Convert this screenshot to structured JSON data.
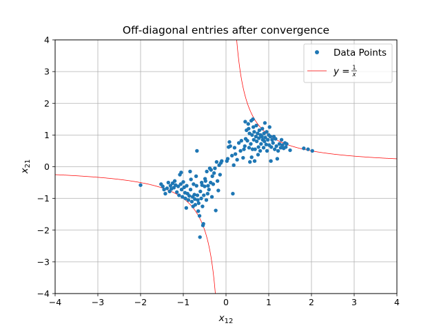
{
  "chart_data": {
    "type": "scatter",
    "title": "Off-diagonal entries after convergence",
    "xlabel": {
      "base": "x",
      "sub": "12"
    },
    "ylabel": {
      "base": "x",
      "sub": "21"
    },
    "xlim": [
      -4,
      4
    ],
    "ylim": [
      -4,
      4
    ],
    "xticks": [
      -4,
      -3,
      -2,
      -1,
      0,
      1,
      2,
      3,
      4
    ],
    "yticks": [
      -4,
      -3,
      -2,
      -1,
      0,
      1,
      2,
      3,
      4
    ],
    "xtick_labels": [
      "−4",
      "−3",
      "−2",
      "−1",
      "0",
      "1",
      "2",
      "3",
      "4"
    ],
    "ytick_labels": [
      "−4",
      "−3",
      "−2",
      "−1",
      "0",
      "1",
      "2",
      "3",
      "4"
    ],
    "grid": true,
    "legend_position": "top-right",
    "series": [
      {
        "name": "Data Points",
        "kind": "scatter",
        "color": "#1f77b4",
        "points": [
          [
            -2.0,
            -0.58
          ],
          [
            -1.52,
            -0.55
          ],
          [
            -1.48,
            -0.62
          ],
          [
            -1.45,
            -0.72
          ],
          [
            -1.42,
            -0.85
          ],
          [
            -1.38,
            -0.68
          ],
          [
            -1.35,
            -0.5
          ],
          [
            -1.32,
            -0.78
          ],
          [
            -1.3,
            -0.6
          ],
          [
            -1.28,
            -0.7
          ],
          [
            -1.25,
            -0.52
          ],
          [
            -1.22,
            -0.66
          ],
          [
            -1.2,
            -0.45
          ],
          [
            -1.18,
            -0.58
          ],
          [
            -1.15,
            -0.8
          ],
          [
            -1.12,
            -0.62
          ],
          [
            -1.1,
            -0.9
          ],
          [
            -1.08,
            -0.25
          ],
          [
            -1.06,
            -0.55
          ],
          [
            -1.05,
            -0.18
          ],
          [
            -1.04,
            -0.72
          ],
          [
            -1.02,
            -0.95
          ],
          [
            -1.0,
            -0.48
          ],
          [
            -0.98,
            -0.65
          ],
          [
            -0.96,
            -0.82
          ],
          [
            -0.95,
            -1.0
          ],
          [
            -0.93,
            -1.3
          ],
          [
            -0.92,
            -0.6
          ],
          [
            -0.9,
            -0.85
          ],
          [
            -0.88,
            -1.05
          ],
          [
            -0.86,
            -0.92
          ],
          [
            -0.84,
            -0.15
          ],
          [
            -0.83,
            -0.72
          ],
          [
            -0.82,
            -0.4
          ],
          [
            -0.8,
            -1.1
          ],
          [
            -0.78,
            -0.95
          ],
          [
            -0.77,
            -1.25
          ],
          [
            -0.76,
            -0.55
          ],
          [
            -0.74,
            -0.88
          ],
          [
            -0.73,
            -1.02
          ],
          [
            -0.72,
            -1.2
          ],
          [
            -0.7,
            -0.3
          ],
          [
            -0.69,
            -0.6
          ],
          [
            -0.68,
            0.5
          ],
          [
            -0.67,
            -0.9
          ],
          [
            -0.66,
            -1.05
          ],
          [
            -0.65,
            -1.4
          ],
          [
            -0.64,
            -1.15
          ],
          [
            -0.62,
            -1.55
          ],
          [
            -0.61,
            -2.22
          ],
          [
            -0.6,
            -0.78
          ],
          [
            -0.58,
            -1.0
          ],
          [
            -0.57,
            -0.5
          ],
          [
            -0.56,
            -0.58
          ],
          [
            -0.55,
            -1.25
          ],
          [
            -0.54,
            -1.85
          ],
          [
            -0.53,
            -1.8
          ],
          [
            -0.52,
            -0.9
          ],
          [
            -0.5,
            -0.62
          ],
          [
            -0.49,
            -0.38
          ],
          [
            -0.48,
            -0.45
          ],
          [
            -0.46,
            -1.05
          ],
          [
            -0.45,
            -0.15
          ],
          [
            -0.43,
            -0.85
          ],
          [
            -0.42,
            -0.6
          ],
          [
            -0.4,
            -0.72
          ],
          [
            -0.38,
            -0.05
          ],
          [
            -0.36,
            -0.5
          ],
          [
            -0.35,
            -0.1
          ],
          [
            -0.33,
            -0.95
          ],
          [
            -0.32,
            -0.3
          ],
          [
            -0.3,
            -0.55
          ],
          [
            -0.28,
            -0.2
          ],
          [
            -0.26,
            -0.05
          ],
          [
            -0.24,
            -1.38
          ],
          [
            -0.22,
            0.15
          ],
          [
            -0.2,
            -0.45
          ],
          [
            -0.18,
            -0.75
          ],
          [
            -0.16,
            0.05
          ],
          [
            -0.14,
            -0.25
          ],
          [
            -0.12,
            0.12
          ],
          [
            -0.1,
            0.18
          ],
          [
            0.02,
            0.18
          ],
          [
            0.04,
            0.25
          ],
          [
            0.06,
            0.62
          ],
          [
            0.08,
            0.78
          ],
          [
            0.1,
            0.65
          ],
          [
            0.14,
            0.35
          ],
          [
            0.16,
            -0.85
          ],
          [
            0.18,
            0.05
          ],
          [
            0.2,
            0.6
          ],
          [
            0.22,
            0.4
          ],
          [
            0.26,
            0.22
          ],
          [
            0.3,
            0.75
          ],
          [
            0.34,
            0.5
          ],
          [
            0.36,
            0.82
          ],
          [
            0.4,
            0.28
          ],
          [
            0.42,
            0.55
          ],
          [
            0.44,
            0.65
          ],
          [
            0.45,
            1.42
          ],
          [
            0.46,
            0.88
          ],
          [
            0.48,
            1.15
          ],
          [
            0.5,
            0.82
          ],
          [
            0.52,
            1.35
          ],
          [
            0.53,
            1.2
          ],
          [
            0.54,
            0.6
          ],
          [
            0.55,
            1.05
          ],
          [
            0.56,
            0.15
          ],
          [
            0.58,
            0.72
          ],
          [
            0.59,
            1.45
          ],
          [
            0.6,
            0.3
          ],
          [
            0.61,
            1.0
          ],
          [
            0.62,
            0.55
          ],
          [
            0.63,
            1.5
          ],
          [
            0.64,
            1.25
          ],
          [
            0.65,
            0.85
          ],
          [
            0.66,
            1.1
          ],
          [
            0.67,
            0.18
          ],
          [
            0.68,
            0.55
          ],
          [
            0.7,
            0.95
          ],
          [
            0.71,
            1.3
          ],
          [
            0.72,
            0.8
          ],
          [
            0.74,
            1.05
          ],
          [
            0.75,
            0.38
          ],
          [
            0.76,
            0.62
          ],
          [
            0.77,
            0.9
          ],
          [
            0.78,
            1.15
          ],
          [
            0.8,
            0.5
          ],
          [
            0.81,
            1.0
          ],
          [
            0.82,
            0.72
          ],
          [
            0.84,
            0.95
          ],
          [
            0.85,
            1.2
          ],
          [
            0.86,
            0.85
          ],
          [
            0.88,
            0.6
          ],
          [
            0.89,
            1.05
          ],
          [
            0.9,
            0.8
          ],
          [
            0.91,
            1.38
          ],
          [
            0.92,
            0.92
          ],
          [
            0.94,
            0.7
          ],
          [
            0.95,
            1.1
          ],
          [
            0.96,
            0.5
          ],
          [
            0.98,
            0.85
          ],
          [
            1.0,
            1.0
          ],
          [
            1.01,
            0.68
          ],
          [
            1.02,
            1.25
          ],
          [
            1.04,
            0.95
          ],
          [
            1.05,
            0.18
          ],
          [
            1.06,
            0.62
          ],
          [
            1.08,
            0.85
          ],
          [
            1.1,
            0.75
          ],
          [
            1.12,
            0.95
          ],
          [
            1.14,
            0.55
          ],
          [
            1.16,
            0.88
          ],
          [
            1.18,
            0.65
          ],
          [
            1.2,
            0.25
          ],
          [
            1.22,
            0.5
          ],
          [
            1.25,
            0.72
          ],
          [
            1.28,
            0.6
          ],
          [
            1.3,
            0.85
          ],
          [
            1.32,
            0.68
          ],
          [
            1.35,
            0.58
          ],
          [
            1.38,
            0.75
          ],
          [
            1.4,
            0.62
          ],
          [
            1.42,
            0.72
          ],
          [
            1.5,
            0.52
          ],
          [
            1.82,
            0.58
          ],
          [
            1.92,
            0.55
          ],
          [
            2.02,
            0.5
          ]
        ]
      },
      {
        "name": "y = 1/x",
        "kind": "line",
        "color": "#ff0000",
        "function": "1/x"
      }
    ]
  }
}
